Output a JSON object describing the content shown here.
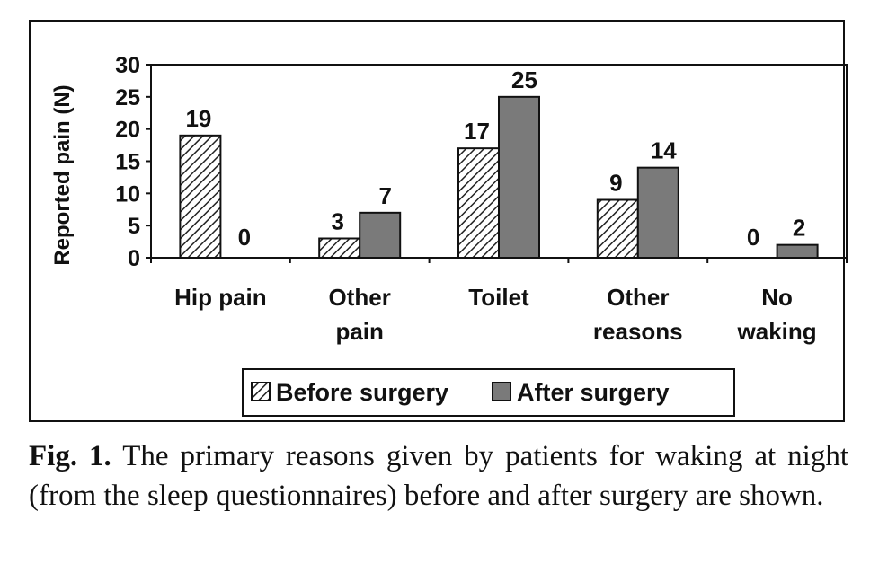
{
  "chart_data": {
    "type": "bar",
    "title": "",
    "xlabel": "",
    "ylabel": "Reported pain (N)",
    "ylim": [
      0,
      30
    ],
    "yticks": [
      0,
      5,
      10,
      15,
      20,
      25,
      30
    ],
    "categories": [
      [
        "Hip pain"
      ],
      [
        "Other",
        "pain"
      ],
      [
        "Toilet"
      ],
      [
        "Other",
        "reasons"
      ],
      [
        "No",
        "waking"
      ]
    ],
    "series": [
      {
        "name": "Before surgery",
        "values": [
          19,
          3,
          17,
          9,
          0
        ],
        "pattern": "hatch"
      },
      {
        "name": "After surgery",
        "values": [
          0,
          7,
          25,
          14,
          2
        ],
        "pattern": "solid"
      }
    ],
    "legend_position": "bottom-center"
  },
  "colors": {
    "after_fill": "#7a7a7a",
    "hatch_line": "#222222",
    "hatch_bg": "#ffffff",
    "stroke": "#111111"
  },
  "caption": {
    "label": "Fig. 1.",
    "text": "The primary reasons given by patients for waking at night (from the sleep questionnaires) before and after surgery are shown."
  }
}
